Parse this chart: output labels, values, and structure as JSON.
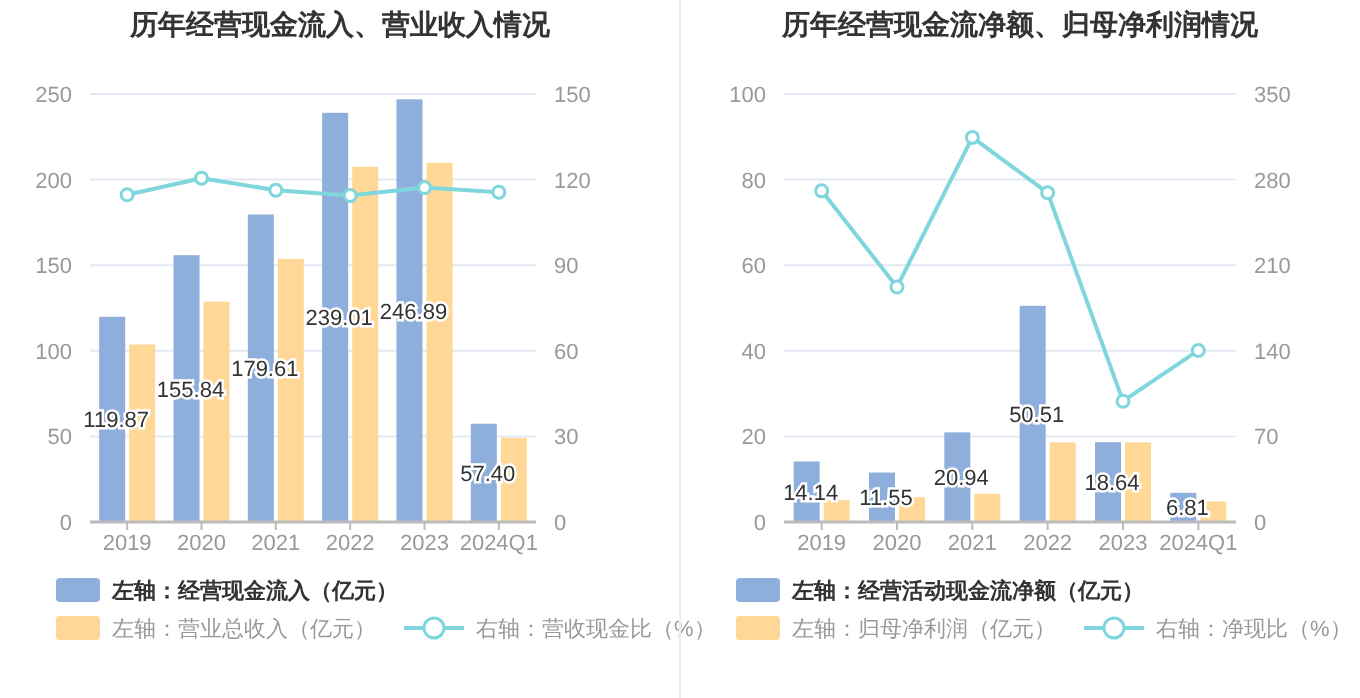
{
  "chart_data": [
    {
      "type": "bar",
      "title": "历年经营现金流入、营业收入情况",
      "categories": [
        "2019",
        "2020",
        "2021",
        "2022",
        "2023",
        "2024Q1"
      ],
      "series": [
        {
          "name": "左轴：经营现金流入（亿元）",
          "color": "#8eaedc",
          "values": [
            119.87,
            155.84,
            179.61,
            239.01,
            246.89,
            57.4
          ],
          "value_labels": [
            "119.87",
            "155.84",
            "179.61",
            "239.01",
            "246.89",
            "57.40"
          ]
        },
        {
          "name": "左轴：营业总收入（亿元）",
          "color": "#ffd898",
          "values": [
            103.7,
            128.7,
            153.7,
            207.5,
            209.8,
            49.1
          ]
        },
        {
          "name": "右轴：营收现金比（%）",
          "type": "line",
          "axis": "y2",
          "color": "#7fd6dc",
          "values": [
            114.7,
            120.5,
            116.3,
            114.4,
            117.2,
            115.6
          ]
        }
      ],
      "ylim": [
        0,
        250
      ],
      "yticks": [
        0,
        50,
        100,
        150,
        200,
        250
      ],
      "y2lim": [
        0,
        150
      ],
      "y2ticks": [
        0,
        30,
        60,
        90,
        120,
        150
      ],
      "grid": "y",
      "legend": "bottom",
      "marker": "circle"
    },
    {
      "type": "bar",
      "title": "历年经营现金流净额、归母净利润情况",
      "categories": [
        "2019",
        "2020",
        "2021",
        "2022",
        "2023",
        "2024Q1"
      ],
      "series": [
        {
          "name": "左轴：经营活动现金流净额（亿元）",
          "color": "#8eaedc",
          "values": [
            14.14,
            11.55,
            20.94,
            50.51,
            18.64,
            6.81
          ],
          "value_labels": [
            "14.14",
            "11.55",
            "20.94",
            "50.51",
            "18.64",
            "6.81"
          ]
        },
        {
          "name": "左轴：归母净利润（亿元）",
          "color": "#ffd898",
          "values": [
            5.1,
            5.8,
            6.6,
            18.6,
            18.6,
            4.8
          ]
        },
        {
          "name": "右轴：净现比（%）",
          "type": "line",
          "axis": "y2",
          "color": "#7fd6dc",
          "values": [
            270.8,
            192.2,
            314.5,
            269.2,
            98.8,
            140.3
          ]
        }
      ],
      "ylim": [
        0,
        100
      ],
      "yticks": [
        0,
        20,
        40,
        60,
        80,
        100
      ],
      "y2lim": [
        0,
        350
      ],
      "y2ticks": [
        0,
        70,
        140,
        210,
        280,
        350
      ],
      "grid": "y",
      "legend": "bottom",
      "marker": "circle"
    }
  ]
}
